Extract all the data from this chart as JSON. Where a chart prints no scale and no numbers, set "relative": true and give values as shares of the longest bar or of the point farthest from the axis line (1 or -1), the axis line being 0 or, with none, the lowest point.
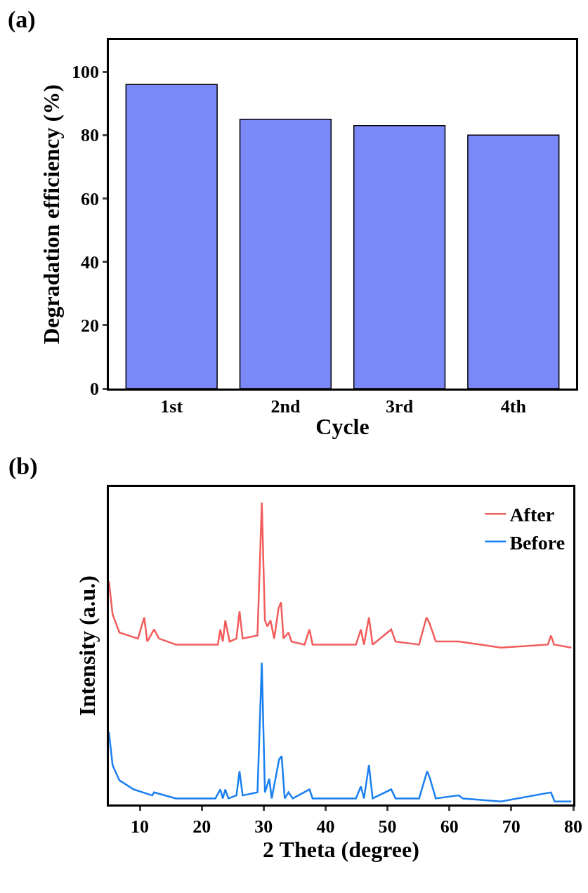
{
  "chart_data": [
    {
      "type": "bar",
      "xlabel": "Cycle",
      "ylabel": "Degradation efficiency (%)",
      "annotations": [
        "(a)"
      ],
      "categories": [
        "1st",
        "2nd",
        "3rd",
        "4th"
      ],
      "values": [
        96,
        85,
        83,
        80
      ],
      "color": "#7b88f8",
      "ylim": [
        0,
        110
      ],
      "yticks": [
        0,
        20,
        40,
        60,
        80,
        100
      ],
      "grid": false,
      "legend": false
    },
    {
      "type": "line",
      "xlabel": "2 Theta (degree)",
      "ylabel": "Intensity (a.u.)",
      "annotations": [
        "(b)"
      ],
      "relative": true,
      "xlim": [
        5,
        80
      ],
      "xticks": [
        10,
        20,
        30,
        40,
        50,
        60,
        70,
        80
      ],
      "grid": false,
      "legend": "top right",
      "marker": "none",
      "line_style": "solid",
      "series": [
        {
          "name": "After",
          "color": "#f25c5c",
          "x": [
            5.0,
            5.6,
            6.7,
            9.7,
            10.7,
            11.2,
            12.3,
            13.1,
            15.8,
            22.6,
            23.0,
            23.4,
            23.8,
            24.5,
            25.6,
            26.1,
            26.6,
            29.0,
            29.7,
            30.2,
            30.6,
            31.1,
            31.7,
            32.4,
            32.8,
            33.2,
            34.0,
            34.5,
            36.6,
            37.4,
            37.9,
            43.0,
            44.9,
            45.7,
            46.2,
            47.0,
            47.6,
            50.6,
            51.3,
            55.1,
            56.3,
            56.8,
            57.8,
            61.5,
            68.3,
            75.9,
            76.4,
            76.9,
            79.7
          ],
          "values": [
            0.74,
            0.63,
            0.57,
            0.55,
            0.62,
            0.54,
            0.58,
            0.55,
            0.53,
            0.53,
            0.58,
            0.54,
            0.61,
            0.54,
            0.55,
            0.64,
            0.55,
            0.56,
            1.0,
            0.61,
            0.59,
            0.61,
            0.55,
            0.65,
            0.67,
            0.55,
            0.57,
            0.54,
            0.53,
            0.58,
            0.53,
            0.53,
            0.53,
            0.58,
            0.53,
            0.62,
            0.53,
            0.58,
            0.54,
            0.53,
            0.62,
            0.6,
            0.54,
            0.54,
            0.52,
            0.53,
            0.56,
            0.53,
            0.52
          ]
        },
        {
          "name": "Before",
          "color": "#1a7ff0",
          "x": [
            5.0,
            5.6,
            6.7,
            9.0,
            12.0,
            12.3,
            15.8,
            22.2,
            23.0,
            23.4,
            23.8,
            24.3,
            25.6,
            26.1,
            26.6,
            29.0,
            29.7,
            30.2,
            30.9,
            31.3,
            32.5,
            32.9,
            33.4,
            34.0,
            34.7,
            37.4,
            37.9,
            41.3,
            44.9,
            45.7,
            46.2,
            47.0,
            47.6,
            50.6,
            51.3,
            55.1,
            56.4,
            56.8,
            57.8,
            61.5,
            62.2,
            68.3,
            76.4,
            77.0,
            79.7
          ],
          "values": [
            0.24,
            0.13,
            0.08,
            0.05,
            0.03,
            0.04,
            0.02,
            0.02,
            0.05,
            0.02,
            0.05,
            0.02,
            0.03,
            0.11,
            0.03,
            0.04,
            0.47,
            0.04,
            0.085,
            0.02,
            0.15,
            0.16,
            0.02,
            0.04,
            0.02,
            0.05,
            0.02,
            0.02,
            0.02,
            0.06,
            0.02,
            0.13,
            0.02,
            0.05,
            0.02,
            0.02,
            0.11,
            0.09,
            0.02,
            0.03,
            0.02,
            0.01,
            0.04,
            0.01,
            0.01
          ]
        }
      ]
    }
  ]
}
